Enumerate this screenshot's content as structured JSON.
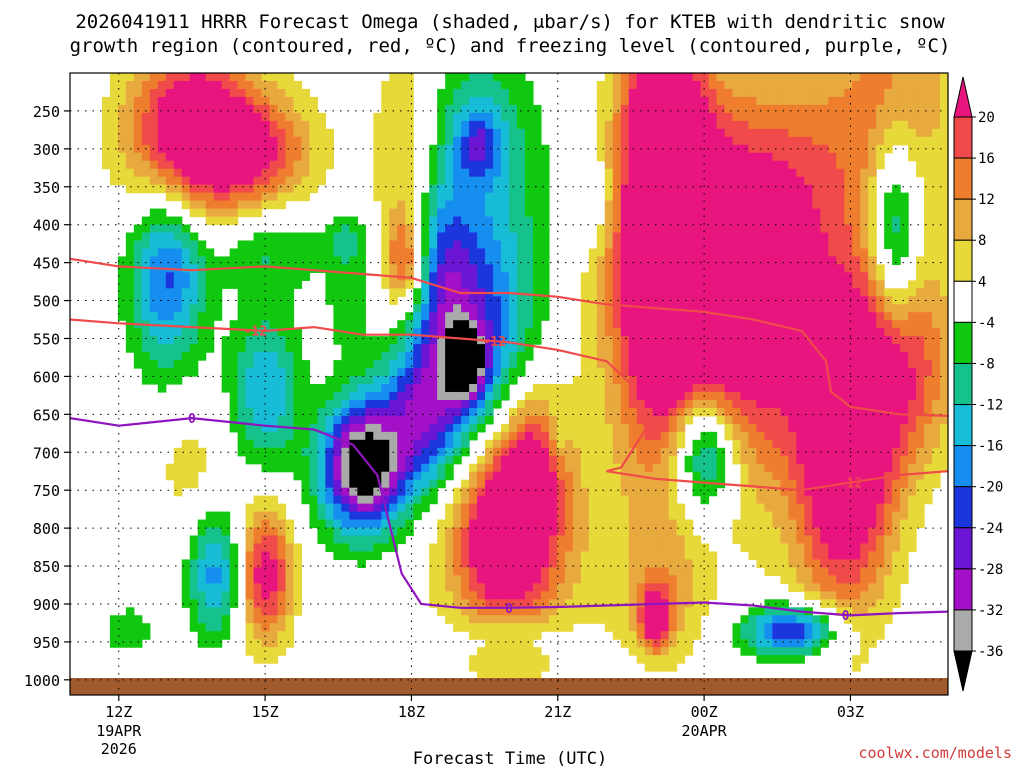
{
  "chart_data": {
    "type": "heatmap",
    "title_line1": "2026041911 HRRR Forecast Omega (shaded, μbar/s) for KTEB with dendritic snow",
    "title_line2": "growth region (contoured, red, ºC) and freezing level (contoured, purple, ºC)",
    "xlabel": "Forecast Time (UTC)",
    "credit": "coolwx.com/models",
    "x_ticks": [
      {
        "hours": 1,
        "label": "12Z",
        "sub": [
          "19APR",
          "2026"
        ]
      },
      {
        "hours": 4,
        "label": "15Z",
        "sub": []
      },
      {
        "hours": 7,
        "label": "18Z",
        "sub": []
      },
      {
        "hours": 10,
        "label": "21Z",
        "sub": []
      },
      {
        "hours": 13,
        "label": "00Z",
        "sub": [
          "20APR"
        ]
      },
      {
        "hours": 16,
        "label": "03Z",
        "sub": []
      }
    ],
    "xlim": [
      0,
      18
    ],
    "y_ticks": [
      250,
      300,
      350,
      400,
      450,
      500,
      550,
      600,
      650,
      700,
      750,
      800,
      850,
      900,
      950,
      1000
    ],
    "ylim": [
      200,
      1020
    ],
    "grid": true,
    "colorbar": {
      "labels": [
        20,
        16,
        12,
        8,
        4,
        -4,
        -8,
        -12,
        -16,
        -20,
        -24,
        -28,
        -32,
        -36
      ],
      "bins": [
        {
          "lo": 20,
          "hi": 99,
          "color": "#e8157f"
        },
        {
          "lo": 16,
          "hi": 20,
          "color": "#f04a4a"
        },
        {
          "lo": 12,
          "hi": 16,
          "color": "#ee7e2e"
        },
        {
          "lo": 8,
          "hi": 12,
          "color": "#e8a93e"
        },
        {
          "lo": 4,
          "hi": 8,
          "color": "#e8d93a"
        },
        {
          "lo": -4,
          "hi": 4,
          "color": "#ffffff"
        },
        {
          "lo": -8,
          "hi": -4,
          "color": "#11c811"
        },
        {
          "lo": -12,
          "hi": -8,
          "color": "#16c28c"
        },
        {
          "lo": -16,
          "hi": -12,
          "color": "#17bcd6"
        },
        {
          "lo": -20,
          "hi": -16,
          "color": "#168ef0"
        },
        {
          "lo": -24,
          "hi": -20,
          "color": "#1c36de"
        },
        {
          "lo": -28,
          "hi": -24,
          "color": "#6a16d4"
        },
        {
          "lo": -32,
          "hi": -28,
          "color": "#a210c8"
        },
        {
          "lo": -36,
          "hi": -32,
          "color": "#aaaaaa"
        },
        {
          "lo": -99,
          "hi": -36,
          "color": "#000000"
        }
      ]
    },
    "omega_features": [
      {
        "t": 2.5,
        "p": 275,
        "amp": 25,
        "st": 0.9,
        "sp": 85
      },
      {
        "t": 3.2,
        "p": 300,
        "amp": 10,
        "st": 1.3,
        "sp": 60
      },
      {
        "t": 4.0,
        "p": 305,
        "amp": 9,
        "st": 0.7,
        "sp": 50
      },
      {
        "t": 2.0,
        "p": 460,
        "amp": -22,
        "st": 0.55,
        "sp": 90
      },
      {
        "t": 4.0,
        "p": 430,
        "amp": -9,
        "st": 0.8,
        "sp": 40
      },
      {
        "t": 4.0,
        "p": 620,
        "amp": -16,
        "st": 0.5,
        "sp": 75
      },
      {
        "t": 3.0,
        "p": 860,
        "amp": -18,
        "st": 0.4,
        "sp": 60
      },
      {
        "t": 1.2,
        "p": 935,
        "amp": -7,
        "st": 0.4,
        "sp": 25
      },
      {
        "t": 4.0,
        "p": 860,
        "amp": 24,
        "st": 0.4,
        "sp": 65
      },
      {
        "t": 5.7,
        "p": 415,
        "amp": -7,
        "st": 0.35,
        "sp": 28
      },
      {
        "t": 6.9,
        "p": 350,
        "amp": 11,
        "st": 0.5,
        "sp": 140
      },
      {
        "t": 6.9,
        "p": 450,
        "amp": 18,
        "st": 0.3,
        "sp": 45
      },
      {
        "t": 7.5,
        "p": 450,
        "amp": -14,
        "st": 0.5,
        "sp": 80
      },
      {
        "t": 8.2,
        "p": 560,
        "amp": -22,
        "st": 0.8,
        "sp": 110
      },
      {
        "t": 8.1,
        "p": 580,
        "amp": -33,
        "st": 0.25,
        "sp": 30
      },
      {
        "t": 6.0,
        "p": 720,
        "amp": -42,
        "st": 0.6,
        "sp": 60
      },
      {
        "t": 7.2,
        "p": 650,
        "amp": -22,
        "st": 0.6,
        "sp": 70
      },
      {
        "t": 5.7,
        "p": 500,
        "amp": -6,
        "st": 0.35,
        "sp": 55
      },
      {
        "t": 8.3,
        "p": 270,
        "amp": -9,
        "st": 0.7,
        "sp": 75
      },
      {
        "t": 8.4,
        "p": 295,
        "amp": -12,
        "st": 0.3,
        "sp": 30
      },
      {
        "t": 8.8,
        "p": 400,
        "amp": -7,
        "st": 1.2,
        "sp": 130
      },
      {
        "t": 8.9,
        "p": 800,
        "amp": 26,
        "st": 0.7,
        "sp": 90
      },
      {
        "t": 9.5,
        "p": 710,
        "amp": 14,
        "st": 0.45,
        "sp": 70
      },
      {
        "t": 9.0,
        "p": 940,
        "amp": -7,
        "st": 0.8,
        "sp": 20
      },
      {
        "t": 10.8,
        "p": 370,
        "amp": -6,
        "st": 0.25,
        "sp": 45
      },
      {
        "t": 10.0,
        "p": 680,
        "amp": -6,
        "st": 0.15,
        "sp": 25
      },
      {
        "t": 12.1,
        "p": 350,
        "amp": 22,
        "st": 0.6,
        "sp": 250
      },
      {
        "t": 12.3,
        "p": 250,
        "amp": 10,
        "st": 0.6,
        "sp": 60
      },
      {
        "t": 13.2,
        "p": 470,
        "amp": 28,
        "st": 1.5,
        "sp": 140
      },
      {
        "t": 14.2,
        "p": 520,
        "amp": 10,
        "st": 1.2,
        "sp": 200
      },
      {
        "t": 15.9,
        "p": 720,
        "amp": 28,
        "st": 0.7,
        "sp": 140
      },
      {
        "t": 17.0,
        "p": 580,
        "amp": 20,
        "st": 0.8,
        "sp": 100
      },
      {
        "t": 16.0,
        "p": 300,
        "amp": 8,
        "st": 1.3,
        "sp": 100
      },
      {
        "t": 17.0,
        "p": 200,
        "amp": 10,
        "st": 0.8,
        "sp": 100
      },
      {
        "t": 16.9,
        "p": 410,
        "amp": -20,
        "st": 0.35,
        "sp": 100
      },
      {
        "t": 13.0,
        "p": 700,
        "amp": -24,
        "st": 0.45,
        "sp": 55
      },
      {
        "t": 14.8,
        "p": 935,
        "amp": -26,
        "st": 0.7,
        "sp": 25
      },
      {
        "t": 12.2,
        "p": 890,
        "amp": 8,
        "st": 0.6,
        "sp": 60
      },
      {
        "t": 12.0,
        "p": 920,
        "amp": 26,
        "st": 0.2,
        "sp": 25
      },
      {
        "t": 9.4,
        "p": 820,
        "amp": 8,
        "st": 1.5,
        "sp": 120
      },
      {
        "t": 2.5,
        "p": 720,
        "amp": 6,
        "st": 0.6,
        "sp": 60
      }
    ],
    "series": [
      {
        "name": "freezing level",
        "contour_label": "0",
        "color": "#8e15c0",
        "t": [
          0,
          1.0,
          2.5,
          4.0,
          5.0,
          5.8,
          6.3,
          6.8,
          7.2,
          8.0,
          9.0,
          10.0,
          11.0,
          12.0,
          13.0,
          14.0,
          15.0,
          16.0,
          17.0,
          18.0
        ],
        "p": [
          655,
          665,
          655,
          665,
          670,
          690,
          730,
          860,
          900,
          905,
          905,
          904,
          902,
          900,
          898,
          902,
          910,
          915,
          912,
          910
        ],
        "label_at": [
          2.5,
          9.0,
          15.9
        ]
      },
      {
        "name": "-12",
        "contour_label": "-12",
        "color": "#f04a4a",
        "t": [
          0,
          1.0,
          2.5,
          4.0,
          5.0,
          6.0,
          7.0,
          8.0,
          9.0,
          10.0,
          11.0,
          11.5,
          11.8,
          11.3,
          11.0,
          12.0,
          13.0,
          14.0,
          15.0,
          16.0,
          17.0,
          18.0
        ],
        "p": [
          525,
          530,
          535,
          540,
          535,
          545,
          545,
          550,
          555,
          565,
          580,
          610,
          670,
          720,
          725,
          735,
          740,
          745,
          750,
          740,
          730,
          725
        ],
        "label_at": [
          3.8,
          8.7,
          16.0
        ]
      },
      {
        "name": "-18",
        "contour_label": "",
        "color": "#f04a4a",
        "t": [
          0,
          1.0,
          2.5,
          4.0,
          5.0,
          6.0,
          7.0,
          8.0,
          9.0,
          10.0,
          11.0,
          12.0,
          13.0,
          14.0,
          15.0,
          15.5,
          15.6,
          16.0,
          17.0,
          18.0
        ],
        "p": [
          445,
          455,
          460,
          455,
          460,
          465,
          470,
          490,
          490,
          495,
          505,
          510,
          515,
          525,
          540,
          580,
          620,
          640,
          650,
          652
        ],
        "label_at": []
      }
    ]
  }
}
